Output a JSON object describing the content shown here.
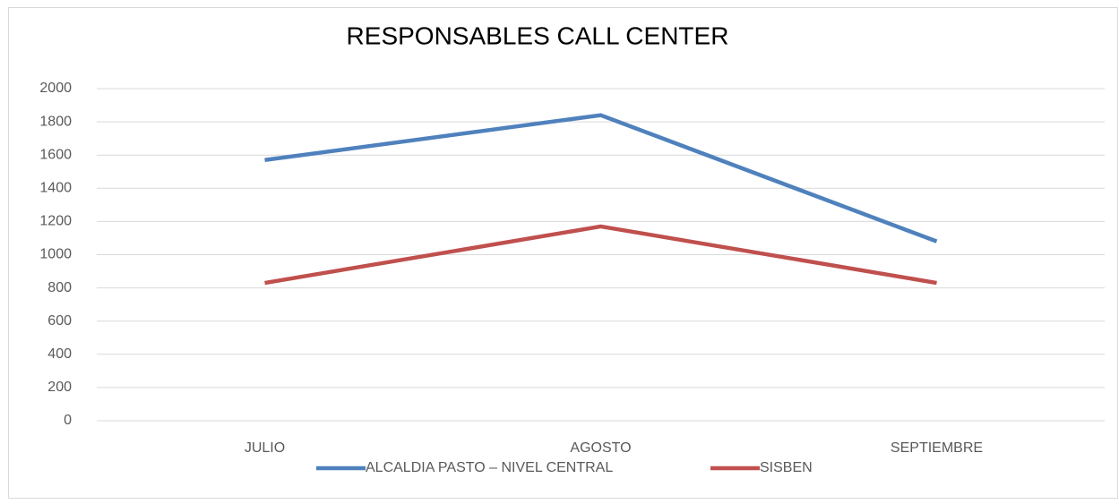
{
  "chart_data": {
    "type": "line",
    "title": "RESPONSABLES CALL CENTER",
    "categories": [
      "JULIO",
      "AGOSTO",
      "SEPTIEMBRE"
    ],
    "series": [
      {
        "name": "ALCALDIA PASTO – NIVEL CENTRAL",
        "color": "#4f81bd",
        "values": [
          1570,
          1840,
          1080
        ]
      },
      {
        "name": "SISBEN",
        "color": "#c0504d",
        "values": [
          830,
          1170,
          830
        ]
      }
    ],
    "ylim": [
      0,
      2000
    ],
    "yticks": [
      0,
      200,
      400,
      600,
      800,
      1000,
      1200,
      1400,
      1600,
      1800,
      2000
    ],
    "grid": true,
    "legend": "bottom"
  }
}
